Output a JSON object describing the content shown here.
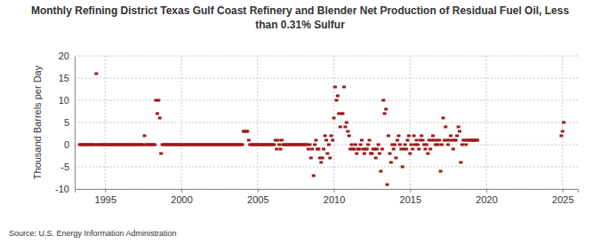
{
  "chart_data": {
    "type": "scatter",
    "title": "Monthly Refining District Texas Gulf Coast Refinery and Blender Net Production of Residual Fuel Oil, Less than 0.31% Sulfur",
    "y_label": "Thousand Barrels per Day",
    "annotations": [
      "Source: U.S. Energy Information Administration"
    ],
    "color": "#9b1c1c",
    "marker": "dash",
    "grid": true,
    "xlim": [
      1993,
      2026
    ],
    "xticks": [
      1995,
      2000,
      2005,
      2010,
      2015,
      2020,
      2025
    ],
    "ylim": [
      -10,
      20
    ],
    "yticks": [
      -10,
      -5,
      0,
      5,
      10,
      15,
      20
    ],
    "x": [
      1993.33,
      1993.42,
      1993.5,
      1993.58,
      1993.67,
      1993.75,
      1993.83,
      1993.92,
      1994,
      1994.08,
      1994.17,
      1994.25,
      1994.33,
      1994.42,
      1994.5,
      1994.58,
      1994.67,
      1994.75,
      1994.83,
      1994.92,
      1995,
      1995.08,
      1995.17,
      1995.25,
      1995.33,
      1995.42,
      1995.5,
      1995.58,
      1995.67,
      1995.75,
      1995.83,
      1995.92,
      1996,
      1996.08,
      1996.17,
      1996.25,
      1996.33,
      1996.42,
      1996.5,
      1996.58,
      1996.67,
      1996.75,
      1996.83,
      1996.92,
      1997,
      1997.08,
      1997.17,
      1997.25,
      1997.33,
      1997.42,
      1997.5,
      1997.58,
      1997.67,
      1997.75,
      1997.83,
      1997.92,
      1998,
      1998.08,
      1998.17,
      1998.25,
      1998.33,
      1998.42,
      1998.5,
      1998.58,
      1998.67,
      1998.75,
      1998.83,
      1998.92,
      1999,
      1999.08,
      1999.17,
      1999.25,
      1999.33,
      1999.42,
      1999.5,
      1999.58,
      1999.67,
      1999.75,
      1999.83,
      1999.92,
      2000,
      2000.08,
      2000.17,
      2000.25,
      2000.33,
      2000.42,
      2000.5,
      2000.58,
      2000.67,
      2000.75,
      2000.83,
      2000.92,
      2001,
      2001.08,
      2001.17,
      2001.25,
      2001.33,
      2001.42,
      2001.5,
      2001.58,
      2001.67,
      2001.75,
      2001.83,
      2001.92,
      2002,
      2002.08,
      2002.17,
      2002.25,
      2002.33,
      2002.42,
      2002.5,
      2002.58,
      2002.67,
      2002.75,
      2002.83,
      2002.92,
      2003,
      2003.08,
      2003.17,
      2003.25,
      2003.33,
      2003.42,
      2003.5,
      2003.58,
      2003.67,
      2003.75,
      2003.83,
      2003.92,
      2004,
      2004.08,
      2004.17,
      2004.25,
      2004.33,
      2004.42,
      2004.5,
      2004.58,
      2004.67,
      2004.75,
      2004.83,
      2004.92,
      2005,
      2005.08,
      2005.17,
      2005.25,
      2005.33,
      2005.42,
      2005.5,
      2005.58,
      2005.67,
      2005.75,
      2005.83,
      2005.92,
      2006,
      2006.08,
      2006.17,
      2006.25,
      2006.33,
      2006.42,
      2006.5,
      2006.58,
      2006.67,
      2006.75,
      2006.83,
      2006.92,
      2007,
      2007.08,
      2007.17,
      2007.25,
      2007.33,
      2007.42,
      2007.5,
      2007.58,
      2007.67,
      2007.75,
      2007.83,
      2007.92,
      2008,
      2008.08,
      2008.17,
      2008.25,
      2008.33,
      2008.42,
      2008.5,
      2008.58,
      2008.67,
      2008.75,
      2008.83,
      2008.92,
      2009,
      2009.08,
      2009.17,
      2009.25,
      2009.33,
      2009.42,
      2009.5,
      2009.58,
      2009.67,
      2009.75,
      2009.83,
      2009.92,
      2010,
      2010.08,
      2010.17,
      2010.25,
      2010.33,
      2010.42,
      2010.5,
      2010.58,
      2010.67,
      2010.75,
      2010.83,
      2010.92,
      2011,
      2011.08,
      2011.17,
      2011.25,
      2011.33,
      2011.42,
      2011.5,
      2011.58,
      2011.67,
      2011.75,
      2011.83,
      2011.92,
      2012,
      2012.08,
      2012.17,
      2012.25,
      2012.33,
      2012.42,
      2012.5,
      2012.58,
      2012.67,
      2012.75,
      2012.83,
      2012.92,
      2013,
      2013.08,
      2013.17,
      2013.25,
      2013.33,
      2013.42,
      2013.5,
      2013.58,
      2013.67,
      2013.75,
      2013.83,
      2013.92,
      2014,
      2014.08,
      2014.17,
      2014.25,
      2014.33,
      2014.42,
      2014.5,
      2014.58,
      2014.67,
      2014.75,
      2014.83,
      2014.92,
      2015,
      2015.08,
      2015.17,
      2015.25,
      2015.33,
      2015.42,
      2015.5,
      2015.58,
      2015.67,
      2015.75,
      2015.83,
      2015.92,
      2016,
      2016.08,
      2016.17,
      2016.25,
      2016.33,
      2016.42,
      2016.5,
      2016.58,
      2016.67,
      2016.75,
      2016.83,
      2016.92,
      2017,
      2017.08,
      2017.17,
      2017.25,
      2017.33,
      2017.42,
      2017.5,
      2017.58,
      2017.67,
      2017.75,
      2017.83,
      2017.92,
      2018,
      2018.08,
      2018.17,
      2018.25,
      2018.33,
      2018.42,
      2018.5,
      2018.58,
      2018.67,
      2018.75,
      2018.83,
      2018.92,
      2019,
      2019.08,
      2019.17,
      2019.25,
      2019.33,
      2019.42,
      2024.92,
      2025,
      2025.08
    ],
    "values": [
      0,
      0,
      0,
      0,
      0,
      0,
      0,
      0,
      0,
      0,
      0,
      0,
      0,
      16,
      0,
      0,
      0,
      0,
      0,
      0,
      0,
      0,
      0,
      0,
      0,
      0,
      0,
      0,
      0,
      0,
      0,
      0,
      0,
      0,
      0,
      0,
      0,
      0,
      0,
      0,
      0,
      0,
      0,
      0,
      0,
      0,
      0,
      0,
      0,
      0,
      0,
      2,
      0,
      0,
      0,
      0,
      0,
      0,
      0,
      0,
      10,
      7,
      10,
      6,
      -2,
      0,
      0,
      0,
      0,
      0,
      0,
      0,
      0,
      0,
      0,
      0,
      0,
      0,
      0,
      0,
      0,
      0,
      0,
      0,
      0,
      0,
      0,
      0,
      0,
      0,
      0,
      0,
      0,
      0,
      0,
      0,
      0,
      0,
      0,
      0,
      0,
      0,
      0,
      0,
      0,
      0,
      0,
      0,
      0,
      0,
      0,
      0,
      0,
      0,
      0,
      0,
      0,
      0,
      0,
      0,
      0,
      0,
      0,
      0,
      0,
      0,
      0,
      0,
      0,
      3,
      3,
      3,
      3,
      1,
      0,
      0,
      0,
      0,
      0,
      0,
      0,
      0,
      0,
      0,
      0,
      0,
      0,
      0,
      0,
      0,
      0,
      0,
      0,
      0,
      1,
      -1,
      1,
      0,
      -1,
      1,
      0,
      0,
      0,
      0,
      0,
      0,
      0,
      0,
      0,
      0,
      0,
      0,
      0,
      0,
      0,
      0,
      0,
      0,
      0,
      0,
      -1,
      0,
      -3,
      -1,
      -7,
      0,
      1,
      -1,
      -1,
      -3,
      -4,
      -3,
      -1,
      2,
      1,
      -2,
      0,
      -3,
      2,
      1,
      6,
      13,
      10,
      11,
      7,
      4,
      7,
      7,
      13,
      4,
      5,
      3,
      2,
      -1,
      0,
      -1,
      -1,
      0,
      -2,
      -1,
      -1,
      0,
      1,
      -1,
      -2,
      -1,
      -1,
      0,
      1,
      -2,
      -2,
      -1,
      -1,
      -3,
      -1,
      0,
      -2,
      -6,
      -1,
      10,
      7,
      8,
      -9,
      2,
      -2,
      -4,
      0,
      -1,
      0,
      -3,
      1,
      2,
      0,
      -1,
      -5,
      -1,
      0,
      -1,
      1,
      2,
      -2,
      0,
      -1,
      2,
      0,
      1,
      0,
      -1,
      1,
      2,
      1,
      0,
      -1,
      0,
      -2,
      1,
      -1,
      1,
      2,
      1,
      0,
      1,
      0,
      1,
      -6,
      0,
      6,
      1,
      4,
      1,
      0,
      1,
      2,
      1,
      -1,
      1,
      1,
      2,
      4,
      3,
      -4,
      0,
      1,
      1,
      0,
      1,
      1,
      1,
      1,
      1,
      1,
      1,
      1,
      1,
      2,
      3,
      5
    ]
  }
}
